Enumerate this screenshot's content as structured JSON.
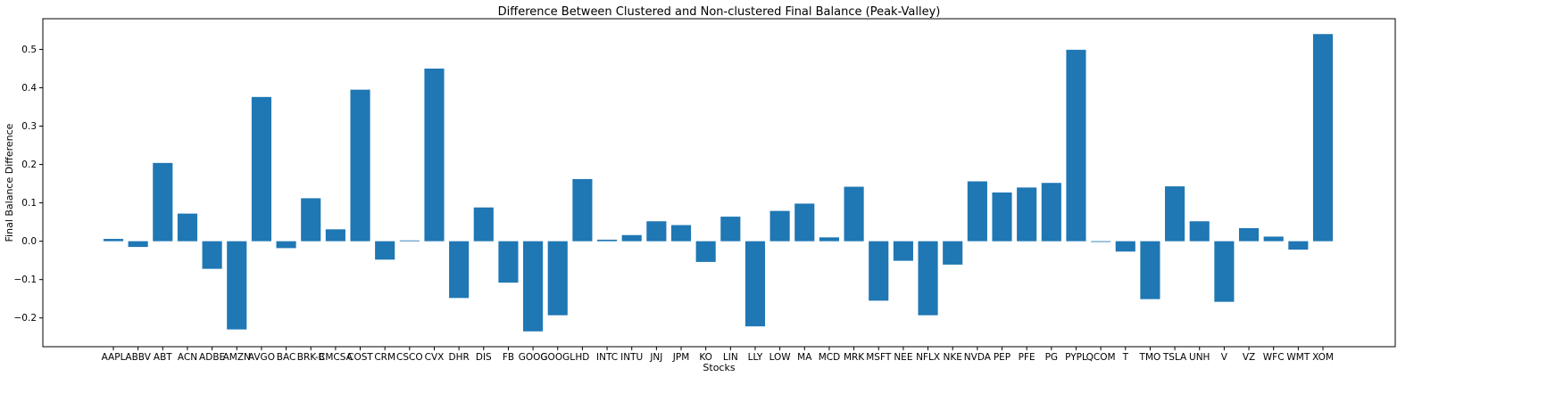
{
  "chart_data": {
    "type": "bar",
    "title": "Difference Between Clustered and Non-clustered Final Balance (Peak-Valley)",
    "xlabel": "Stocks",
    "ylabel": "Final Balance Difference",
    "ylim": [
      -0.275,
      0.58
    ],
    "yticks": [
      -0.2,
      -0.1,
      0.0,
      0.1,
      0.2,
      0.3,
      0.4,
      0.5
    ],
    "ytick_labels": [
      "−0.2",
      "−0.1",
      "0.0",
      "0.1",
      "0.2",
      "0.3",
      "0.4",
      "0.5"
    ],
    "grid": false,
    "color": "#1f77b4",
    "categories": [
      "AAPL",
      "ABBV",
      "ABT",
      "ACN",
      "ADBE",
      "AMZN",
      "AVGO",
      "BAC",
      "BRK-B",
      "CMCSA",
      "COST",
      "CRM",
      "CSCO",
      "CVX",
      "DHR",
      "DIS",
      "FB",
      "GOOG",
      "GOOGL",
      "HD",
      "INTC",
      "INTU",
      "JNJ",
      "JPM",
      "KO",
      "LIN",
      "LLY",
      "LOW",
      "MA",
      "MCD",
      "MRK",
      "MSFT",
      "NEE",
      "NFLX",
      "NKE",
      "NVDA",
      "PEP",
      "PFE",
      "PG",
      "PYPL",
      "QCOM",
      "T",
      "TMO",
      "TSLA",
      "UNH",
      "V",
      "VZ",
      "WFC",
      "WMT",
      "XOM"
    ],
    "values": [
      0.006,
      -0.015,
      0.204,
      0.072,
      -0.072,
      -0.23,
      0.376,
      -0.018,
      0.112,
      0.031,
      0.395,
      -0.048,
      0.002,
      0.45,
      -0.148,
      0.088,
      -0.108,
      -0.235,
      -0.193,
      0.162,
      0.004,
      0.016,
      0.052,
      0.042,
      -0.054,
      0.064,
      -0.222,
      0.079,
      0.098,
      0.01,
      0.142,
      -0.155,
      -0.051,
      -0.193,
      -0.061,
      0.156,
      0.127,
      0.14,
      0.152,
      0.499,
      -0.002,
      -0.027,
      -0.151,
      0.143,
      0.052,
      -0.158,
      0.034,
      0.012,
      -0.022,
      0.54
    ]
  }
}
